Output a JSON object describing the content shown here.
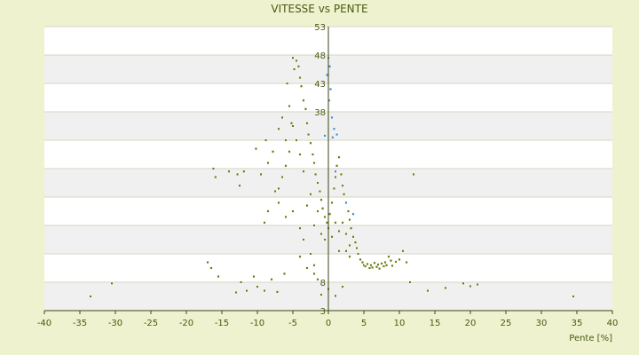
{
  "chart_data": {
    "type": "scatter",
    "title": "VITESSE vs PENTE",
    "xlabel": "Pente [%]",
    "ylabel": "",
    "xlim": [
      -40,
      40
    ],
    "ylim": [
      3,
      53
    ],
    "x_ticks": [
      -40,
      -35,
      -30,
      -25,
      -20,
      -15,
      -10,
      -5,
      0,
      5,
      10,
      15,
      20,
      25,
      30,
      35,
      40
    ],
    "y_tick_labels": [
      {
        "value": 53,
        "label": "53"
      },
      {
        "value": 48,
        "label": "48"
      },
      {
        "value": 43,
        "label": "43"
      },
      {
        "value": 38,
        "label": "38"
      },
      {
        "value": 8,
        "label": "8"
      },
      {
        "value": 3,
        "label": "3"
      }
    ],
    "grid": true,
    "legend": "none",
    "colors": {
      "background": "#eef2cf",
      "plot_band_light": "#ffffff",
      "plot_band_dark": "#f0f0f0",
      "series_main": "#6b7a10",
      "series_highlight": "#3a8ad0",
      "text": "#4a5a12"
    },
    "series": [
      {
        "name": "",
        "color": "#6b7a10",
        "points": [
          [
            -33.5,
            5.5
          ],
          [
            -30.5,
            7.8
          ],
          [
            -17,
            11.5
          ],
          [
            -16.5,
            10.5
          ],
          [
            -16.2,
            28
          ],
          [
            -15.9,
            26.5
          ],
          [
            -15.5,
            9
          ],
          [
            -14,
            27.5
          ],
          [
            -13,
            6.2
          ],
          [
            -12.8,
            27
          ],
          [
            -12.5,
            25
          ],
          [
            -12.3,
            8
          ],
          [
            -11.9,
            27.5
          ],
          [
            -11.5,
            6.5
          ],
          [
            -10.5,
            9
          ],
          [
            -10.2,
            31.5
          ],
          [
            -10,
            7.2
          ],
          [
            -9.5,
            27
          ],
          [
            -9,
            6.5
          ],
          [
            -8.8,
            33
          ],
          [
            -8.5,
            29
          ],
          [
            -8,
            8.5
          ],
          [
            -7.8,
            31
          ],
          [
            -7.5,
            24
          ],
          [
            -7.2,
            6.3
          ],
          [
            -7,
            35
          ],
          [
            -6.5,
            37
          ],
          [
            -6.2,
            9.5
          ],
          [
            -6,
            33
          ],
          [
            -5.8,
            43
          ],
          [
            -5.5,
            39
          ],
          [
            -5.2,
            36
          ],
          [
            -5,
            47.5
          ],
          [
            -4.8,
            45.5
          ],
          [
            -4.5,
            47
          ],
          [
            -4.2,
            46
          ],
          [
            -4,
            44
          ],
          [
            -3.8,
            42.5
          ],
          [
            -3.5,
            40
          ],
          [
            -3.2,
            38.5
          ],
          [
            -3,
            36
          ],
          [
            -2.8,
            34
          ],
          [
            -2.5,
            32.5
          ],
          [
            -2.2,
            30.5
          ],
          [
            -2,
            29
          ],
          [
            -1.8,
            27
          ],
          [
            -1.5,
            25.5
          ],
          [
            -1.2,
            24
          ],
          [
            -1,
            22.5
          ],
          [
            -0.8,
            21
          ],
          [
            -0.5,
            19.5
          ],
          [
            -0.2,
            18.5
          ],
          [
            0,
            17.5
          ],
          [
            0.2,
            20
          ],
          [
            0.5,
            22
          ],
          [
            0.8,
            24.5
          ],
          [
            1,
            26.5
          ],
          [
            1.2,
            28.5
          ],
          [
            1.5,
            30
          ],
          [
            1.8,
            27
          ],
          [
            2,
            25
          ],
          [
            2.2,
            23.5
          ],
          [
            2.5,
            22
          ],
          [
            2.8,
            20.5
          ],
          [
            3,
            19
          ],
          [
            3.2,
            17.5
          ],
          [
            3.5,
            16
          ],
          [
            3.8,
            15
          ],
          [
            4,
            14
          ],
          [
            4.2,
            13
          ],
          [
            4.5,
            12
          ],
          [
            4.8,
            11.5
          ],
          [
            5,
            11
          ],
          [
            5.2,
            10.8
          ],
          [
            5.5,
            11.2
          ],
          [
            5.8,
            10.5
          ],
          [
            6,
            11
          ],
          [
            6.2,
            10.6
          ],
          [
            6.5,
            11.4
          ],
          [
            6.8,
            10.7
          ],
          [
            7,
            11.1
          ],
          [
            7.2,
            10.4
          ],
          [
            7.5,
            11.3
          ],
          [
            7.8,
            10.8
          ],
          [
            8,
            11.5
          ],
          [
            8.2,
            11
          ],
          [
            8.5,
            12.5
          ],
          [
            8.8,
            11.8
          ],
          [
            9,
            10.9
          ],
          [
            9.5,
            11.6
          ],
          [
            10,
            12
          ],
          [
            10.5,
            13.5
          ],
          [
            11,
            11.5
          ],
          [
            11.5,
            8
          ],
          [
            12,
            27
          ],
          [
            14,
            6.5
          ],
          [
            16.5,
            7
          ],
          [
            19,
            7.8
          ],
          [
            20,
            7.3
          ],
          [
            21,
            7.6
          ],
          [
            34.5,
            5.5
          ],
          [
            -3,
            21.5
          ],
          [
            -2.5,
            23.5
          ],
          [
            -2,
            18
          ],
          [
            -1.5,
            20.5
          ],
          [
            -1,
            16.5
          ],
          [
            -0.5,
            15.5
          ],
          [
            0.5,
            16
          ],
          [
            1,
            18.5
          ],
          [
            1.5,
            17
          ],
          [
            2,
            18.5
          ],
          [
            2.5,
            16.5
          ],
          [
            3,
            14.5
          ],
          [
            -3.5,
            27.5
          ],
          [
            -4,
            30.5
          ],
          [
            -4.5,
            33
          ],
          [
            -5,
            35.5
          ],
          [
            -5.5,
            31
          ],
          [
            -6,
            28.5
          ],
          [
            -6.5,
            26.5
          ],
          [
            -7,
            24.5
          ],
          [
            -4,
            17.5
          ],
          [
            -3.5,
            15.5
          ],
          [
            -2.5,
            13
          ],
          [
            -2,
            11
          ],
          [
            -1.5,
            8.5
          ],
          [
            -1,
            5.8
          ],
          [
            0,
            6.8
          ],
          [
            1,
            5.6
          ],
          [
            2,
            7.2
          ],
          [
            3,
            12.5
          ],
          [
            -8.5,
            20.5
          ],
          [
            -9,
            18.5
          ],
          [
            -5,
            20.5
          ],
          [
            -6,
            19.5
          ],
          [
            -7,
            22
          ],
          [
            -3,
            10.5
          ],
          [
            -4,
            12.5
          ],
          [
            -2,
            9.5
          ],
          [
            1.5,
            13.5
          ],
          [
            2.5,
            13.5
          ]
        ]
      },
      {
        "name": "",
        "color": "#3a8ad0",
        "points": [
          [
            0,
            47.5
          ],
          [
            0.2,
            46
          ],
          [
            -0.2,
            44.5
          ],
          [
            0.3,
            42
          ],
          [
            0.1,
            40
          ],
          [
            0.5,
            37
          ],
          [
            0.8,
            35
          ],
          [
            1.2,
            34
          ],
          [
            0.6,
            33.5
          ],
          [
            -0.5,
            33.8
          ],
          [
            1,
            27.5
          ],
          [
            2.5,
            22
          ],
          [
            3.5,
            20
          ]
        ]
      }
    ]
  }
}
